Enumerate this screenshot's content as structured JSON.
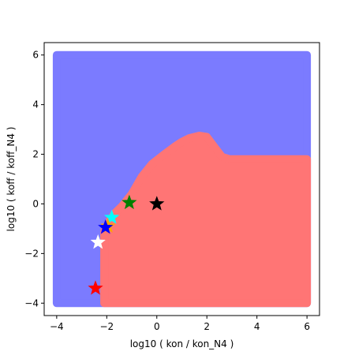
{
  "chart_data": {
    "type": "area",
    "title": "",
    "xlabel": "log10 ( kon / kon_N4 )",
    "ylabel": "log10 ( koff / koff_N4 )",
    "xlim": [
      -4.5,
      6.5
    ],
    "ylim": [
      -4.5,
      6.5
    ],
    "xticks": [
      -4,
      -2,
      0,
      2,
      4,
      6
    ],
    "yticks": [
      -4,
      -2,
      0,
      2,
      4,
      6
    ],
    "grid": false,
    "legend": "none",
    "colors": {
      "region_background": "#7b7bff",
      "region_foreground": "#ff7575",
      "frame": "#000000"
    },
    "regions": [
      {
        "color": "#7b7bff",
        "polygon": [
          [
            -4,
            -4
          ],
          [
            6,
            -4
          ],
          [
            6,
            6
          ],
          [
            -4,
            6
          ]
        ]
      },
      {
        "color": "#ff7575",
        "polygon": [
          [
            -2.1,
            -4
          ],
          [
            6,
            -4
          ],
          [
            6,
            1.8
          ],
          [
            2.9,
            1.8
          ],
          [
            2.6,
            1.9
          ],
          [
            2.3,
            2.3
          ],
          [
            2.0,
            2.7
          ],
          [
            1.7,
            2.75
          ],
          [
            1.3,
            2.65
          ],
          [
            1.0,
            2.5
          ],
          [
            0.7,
            2.3
          ],
          [
            0.3,
            2.0
          ],
          [
            -0.2,
            1.6
          ],
          [
            -0.6,
            1.1
          ],
          [
            -1.0,
            0.4
          ],
          [
            -1.4,
            -0.1
          ],
          [
            -1.7,
            -0.4
          ],
          [
            -1.9,
            -0.7
          ],
          [
            -2.0,
            -0.9
          ],
          [
            -2.1,
            -1.1
          ]
        ]
      }
    ],
    "markers": [
      {
        "color": "#000000",
        "x": 0.0,
        "y": 0.0
      },
      {
        "color": "#008000",
        "x": -1.1,
        "y": 0.05
      },
      {
        "color": "#00ffff",
        "x": -1.8,
        "y": -0.55
      },
      {
        "color": "#ffa500",
        "x": -1.95,
        "y": -0.9
      },
      {
        "color": "#0000ff",
        "x": -2.05,
        "y": -0.95
      },
      {
        "color": "#ffffff",
        "x": -2.35,
        "y": -1.55
      },
      {
        "color": "#ff0000",
        "x": -2.45,
        "y": -3.4
      }
    ]
  }
}
